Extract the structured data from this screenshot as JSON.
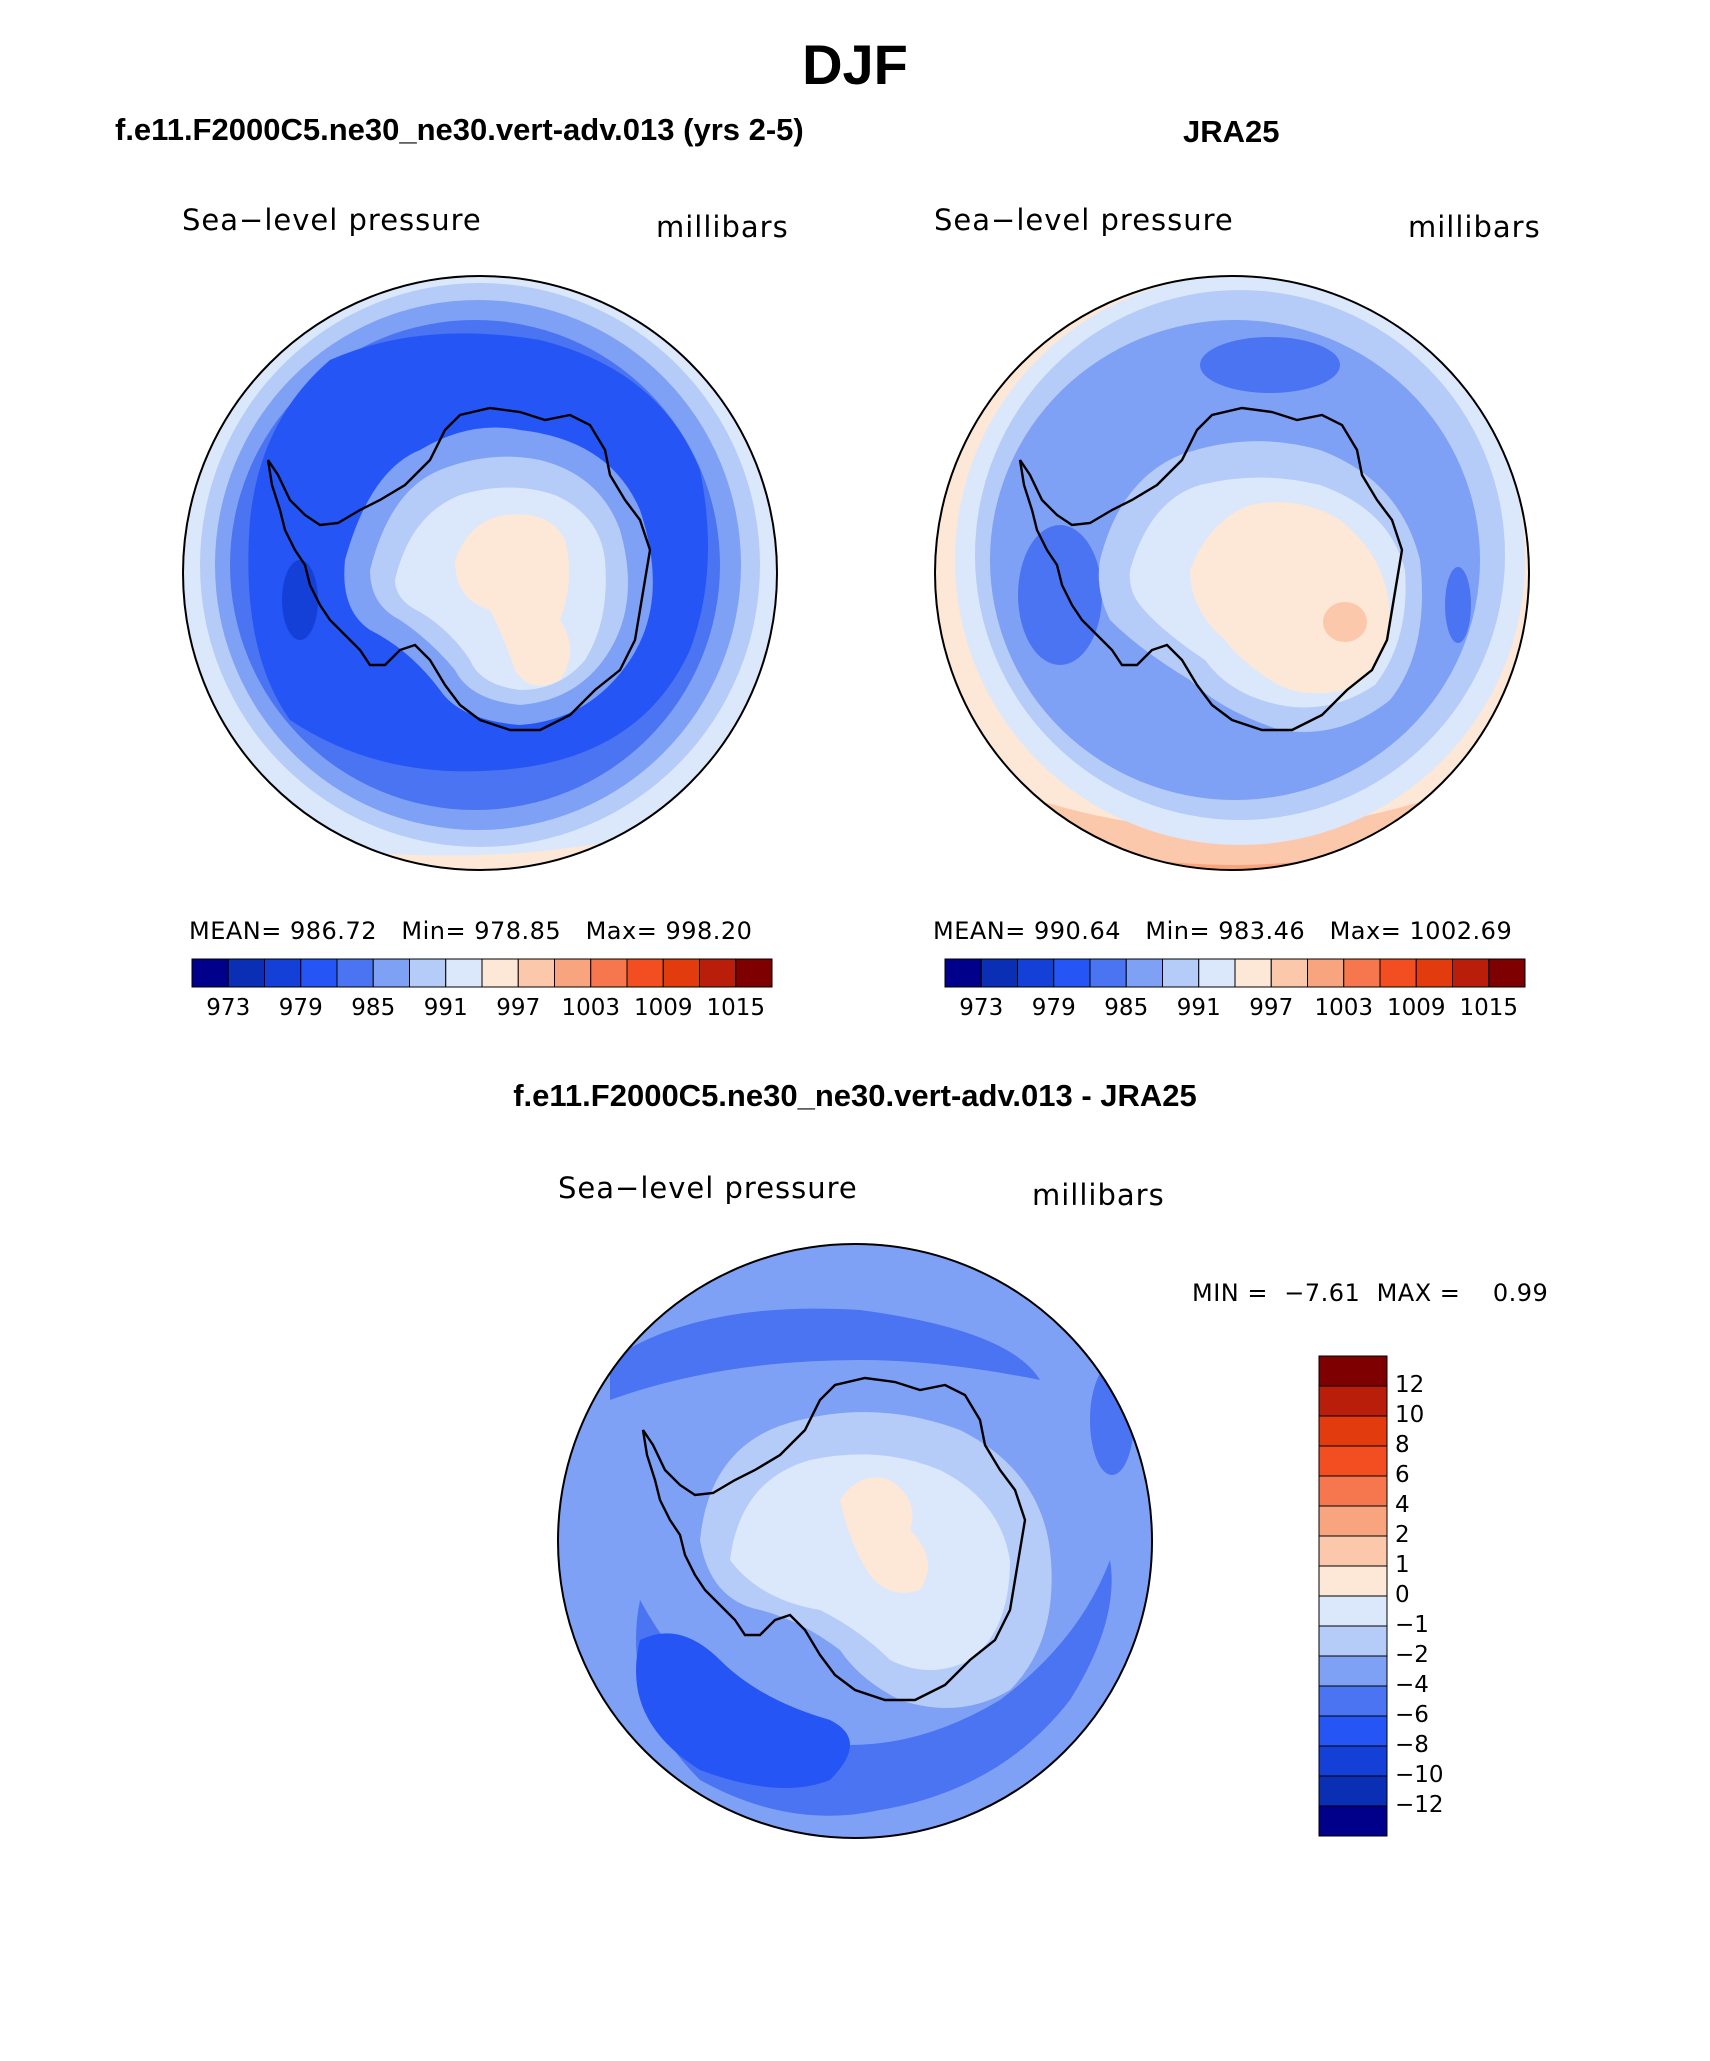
{
  "figure": {
    "season": "DJF",
    "left_title": "f.e11.F2000C5.ne30_ne30.vert-adv.013 (yrs 2-5)",
    "right_title": "JRA25",
    "diff_title": "f.e11.F2000C5.ne30_ne30.vert-adv.013 - JRA25"
  },
  "panels": [
    {
      "variable": "Sea−level pressure",
      "units": "millibars",
      "stats": {
        "mean_label": "MEAN=",
        "mean": "986.72",
        "min_label": "Min=",
        "min": "978.85",
        "max_label": "Max=",
        "max": "998.20"
      }
    },
    {
      "variable": "Sea−level pressure",
      "units": "millibars",
      "stats": {
        "mean_label": "MEAN=",
        "mean": "990.64",
        "min_label": "Min=",
        "min": "983.46",
        "max_label": "Max=",
        "max": "1002.69"
      }
    },
    {
      "variable": "Sea−level pressure",
      "units": "millibars",
      "stats": {
        "min_label": "MIN =",
        "min": "−7.61",
        "max_label": "MAX =",
        "max": "0.99"
      }
    }
  ],
  "colorbars": {
    "absolute": {
      "colors": [
        "#00008b",
        "#0a2fb5",
        "#1440d8",
        "#2556f5",
        "#4a74f2",
        "#7ea0f5",
        "#b5cbf8",
        "#dbe7fb",
        "#fde8d8",
        "#fbc8ab",
        "#f8a47f",
        "#f6774e",
        "#f24e22",
        "#e23b0e",
        "#b91e0b",
        "#7e0000"
      ],
      "tick_labels": [
        "973",
        "979",
        "985",
        "991",
        "997",
        "1003",
        "1009",
        "1015"
      ]
    },
    "difference": {
      "colors": [
        "#00008b",
        "#0a2fb5",
        "#1440d8",
        "#2556f5",
        "#4a74f2",
        "#7ea0f5",
        "#b5cbf8",
        "#dbe7fb",
        "#fde8d8",
        "#fbc8ab",
        "#f8a47f",
        "#f6774e",
        "#f24e22",
        "#e23b0e",
        "#b91e0b",
        "#7e0000"
      ],
      "tick_labels": [
        "12",
        "10",
        "8",
        "6",
        "4",
        "2",
        "1",
        "0",
        "−1",
        "−2",
        "−4",
        "−6",
        "−8",
        "−10",
        "−12"
      ]
    }
  },
  "map_colors": {
    "ocean_deep": "#2556f5",
    "ocean_mid": "#4a74f2",
    "ocean_light": "#7ea0f5",
    "pale_blue": "#b5cbf8",
    "very_pale_blue": "#dbe7fb",
    "peach": "#fde8d8",
    "light_orange": "#fbc8ab",
    "orange": "#f8a47f"
  }
}
